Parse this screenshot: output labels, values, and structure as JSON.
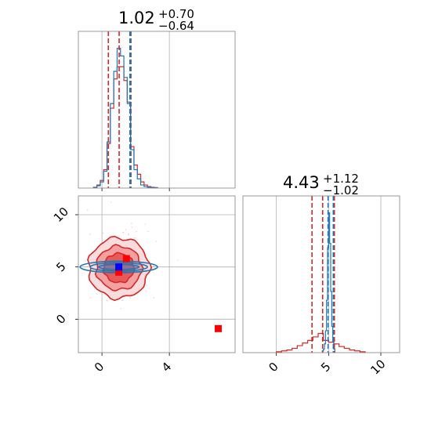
{
  "chart_data": {
    "type": "corner",
    "grid": true,
    "colors": {
      "series_a": "#d62728",
      "series_b": "#1f77b4",
      "marker_a": "#ff0000",
      "marker_b": "#0000ff",
      "axes": "#808080",
      "grid": "#b0b0b0"
    },
    "parameters": [
      {
        "index": 0,
        "title_value": "1.02",
        "title_plus": "+0.70",
        "title_minus": "−0.64"
      },
      {
        "index": 1,
        "title_value": "4.43",
        "title_plus": "+1.12",
        "title_minus": "−1.02"
      }
    ],
    "panels": [
      {
        "id": "hist-param0",
        "type": "histogram",
        "xlim": [
          -1.4,
          7.9
        ],
        "xticks": [
          0,
          4
        ],
        "show_tick_labels": false,
        "quantiles": {
          "series_a": [
            0.38,
            1.02,
            1.72
          ],
          "series_b": [
            1.66,
            1.7
          ]
        },
        "series": [
          {
            "name": "",
            "color": "#d62728",
            "bin_edges": [
              -0.5,
              -0.3,
              -0.1,
              0.1,
              0.3,
              0.5,
              0.7,
              0.9,
              1.1,
              1.3,
              1.5,
              1.7,
              1.9,
              2.1,
              2.3,
              2.5,
              2.7,
              2.9,
              3.1,
              3.3
            ],
            "counts": [
              0.5,
              2,
              5,
              12,
              29,
              52,
              71,
              79,
              79,
              70,
              56,
              27,
              15,
              9,
              4,
              2,
              1,
              0.5,
              0.3
            ]
          },
          {
            "name": "",
            "color": "#1f77b4",
            "bin_edges": [
              -0.5,
              -0.3,
              -0.1,
              0.1,
              0.3,
              0.5,
              0.7,
              0.9,
              1.1,
              1.3,
              1.5,
              1.7,
              1.9,
              2.1,
              2.3,
              2.5,
              2.7,
              2.9,
              3.1,
              3.3
            ],
            "counts": [
              0.3,
              1.5,
              4,
              11,
              30,
              55,
              76,
              91,
              86,
              72,
              55,
              25,
              12,
              6,
              2,
              1,
              0.5,
              0.3,
              0.2
            ]
          }
        ]
      },
      {
        "id": "hist-param1",
        "type": "histogram",
        "xlim": [
          -3.2,
          11.8
        ],
        "xticks": [
          0,
          5,
          10
        ],
        "xtick_labels": [
          "0",
          "5",
          "10"
        ],
        "quantiles": {
          "series_a": [
            3.41,
            4.43,
            5.55
          ],
          "series_b": [
            4.95,
            5.45
          ]
        },
        "series": [
          {
            "name": "",
            "color": "#d62728",
            "bin_edges": [
              0,
              0.5,
              1,
              1.5,
              2,
              2.5,
              3,
              3.5,
              4,
              4.5,
              5,
              5.5,
              6,
              6.5,
              7,
              7.5,
              8,
              8.5
            ],
            "counts": [
              1,
              2,
              3,
              5,
              8,
              11,
              14,
              18,
              22,
              14,
              12,
              10,
              7,
              5,
              3,
              2,
              1
            ]
          },
          {
            "name": "",
            "color": "#1f77b4",
            "bin_edges": [
              4.4,
              4.5,
              4.6,
              4.7,
              4.8,
              4.9,
              5.0,
              5.1,
              5.2,
              5.3,
              5.4,
              5.5,
              5.6
            ],
            "counts": [
              2,
              4,
              10,
              25,
              60,
              120,
              160,
              125,
              70,
              30,
              12,
              4
            ]
          }
        ]
      },
      {
        "id": "scatter-2d",
        "type": "contour",
        "xlim": [
          -1.4,
          7.9
        ],
        "ylim": [
          -3.2,
          11.8
        ],
        "xticks": [
          0,
          4
        ],
        "xtick_labels": [
          "0",
          "4"
        ],
        "yticks": [
          0,
          5,
          10
        ],
        "ytick_labels": [
          "0",
          "5",
          "10"
        ],
        "series_a_center": [
          1.0,
          4.9
        ],
        "series_a_levels_radius": [
          [
            0.9,
            1.4
          ],
          [
            1.35,
            2.1
          ],
          [
            1.8,
            2.9
          ]
        ],
        "series_b_center": [
          1.0,
          5.0
        ],
        "series_b_levels_radius": [
          [
            1.2,
            0.25
          ],
          [
            1.7,
            0.4
          ],
          [
            2.3,
            0.55
          ]
        ],
        "markers": [
          {
            "name": "",
            "x": 6.9,
            "y": -0.9,
            "color": "#ff0000"
          },
          {
            "name": "",
            "x": 1.45,
            "y": 5.8,
            "color": "#ff0000"
          },
          {
            "name": "",
            "x": 1.0,
            "y": 4.5,
            "color": "#ff0000"
          },
          {
            "name": "",
            "x": 1.0,
            "y": 5.0,
            "color": "#0000ff"
          }
        ]
      }
    ]
  }
}
